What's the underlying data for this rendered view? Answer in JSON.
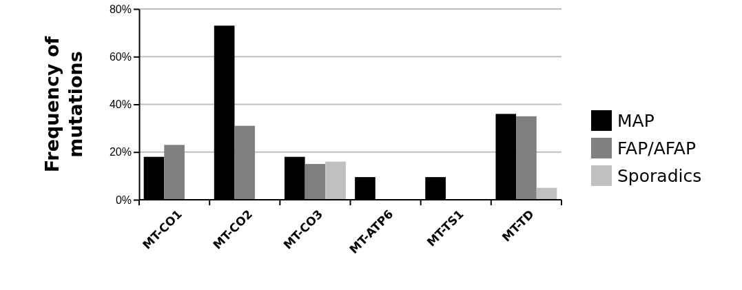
{
  "chart_data": {
    "type": "bar",
    "ylabel": "Frequency of\nmutations",
    "categories": [
      "MT-CO1",
      "MT-CO2",
      "MT-CO3",
      "MT-ATP6",
      "MT-TS1",
      "MT-TD"
    ],
    "series": [
      {
        "name": "MAP",
        "color": "#000000",
        "values": [
          18,
          73,
          18,
          9.5,
          9.5,
          36
        ]
      },
      {
        "name": "FAP/AFAP",
        "color": "#808080",
        "values": [
          23,
          31,
          15,
          null,
          null,
          35
        ]
      },
      {
        "name": "Sporadics",
        "color": "#c0c0c0",
        "values": [
          null,
          null,
          16,
          null,
          null,
          5
        ]
      }
    ],
    "ylim": [
      0,
      80
    ],
    "yticks": [
      {
        "value": 0,
        "label": "0%"
      },
      {
        "value": 20,
        "label": "20%"
      },
      {
        "value": 40,
        "label": "40%"
      },
      {
        "value": 60,
        "label": "60%"
      },
      {
        "value": 80,
        "label": "80%"
      }
    ],
    "grid": "y",
    "legend": "right"
  }
}
